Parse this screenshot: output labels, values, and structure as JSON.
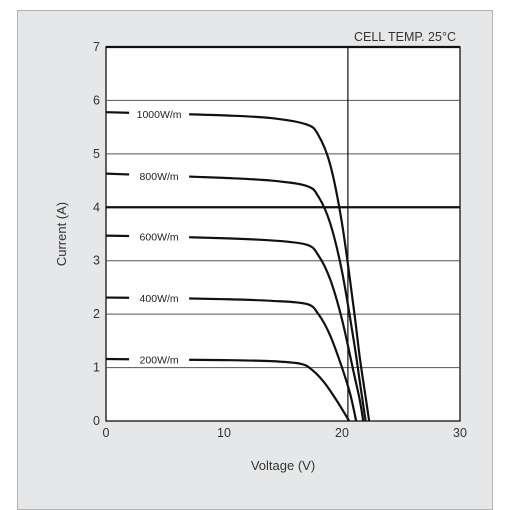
{
  "chart_data": {
    "type": "line",
    "title": "",
    "annotation": "CELL TEMP. 25°C",
    "xlabel": "Voltage (V)",
    "ylabel": "Current  (A)",
    "xlim": [
      0,
      30
    ],
    "ylim": [
      0,
      7
    ],
    "xticks": [
      "0",
      "10",
      "20",
      "30"
    ],
    "yticks": [
      "0",
      "1",
      "2",
      "3",
      "4",
      "5",
      "6",
      "7"
    ],
    "grid": true,
    "legend": "inline labels on curves",
    "series": [
      {
        "name": "1000W/m",
        "x": [
          0,
          5,
          10,
          14,
          17,
          18,
          19,
          20,
          21,
          21.5,
          22,
          22.3
        ],
        "y": [
          5.78,
          5.75,
          5.72,
          5.67,
          5.55,
          5.35,
          4.8,
          3.7,
          2.1,
          1.2,
          0.45,
          0
        ]
      },
      {
        "name": "800W/m",
        "x": [
          0,
          5,
          10,
          14,
          17,
          18,
          19,
          20,
          21,
          21.5,
          22
        ],
        "y": [
          4.63,
          4.59,
          4.55,
          4.5,
          4.4,
          4.2,
          3.7,
          2.8,
          1.5,
          0.75,
          0
        ]
      },
      {
        "name": "600W/m",
        "x": [
          0,
          5,
          10,
          14,
          17,
          18,
          19,
          20,
          21,
          21.5,
          21.8
        ],
        "y": [
          3.47,
          3.45,
          3.42,
          3.38,
          3.3,
          3.1,
          2.65,
          1.9,
          0.9,
          0.4,
          0
        ]
      },
      {
        "name": "400W/m",
        "x": [
          0,
          5,
          10,
          14,
          17,
          18,
          19,
          20,
          20.7,
          21.2
        ],
        "y": [
          2.31,
          2.3,
          2.28,
          2.25,
          2.19,
          2.0,
          1.6,
          1.0,
          0.5,
          0
        ]
      },
      {
        "name": "200W/m",
        "x": [
          0,
          5,
          10,
          14,
          16.5,
          17.5,
          18.5,
          19.5,
          20.2,
          20.6
        ],
        "y": [
          1.16,
          1.15,
          1.14,
          1.12,
          1.07,
          0.95,
          0.72,
          0.4,
          0.15,
          0
        ]
      }
    ],
    "reference_lines": {
      "x": 20.5,
      "y": [
        4,
        7
      ]
    },
    "colors": {
      "line": "#111111",
      "grid": "#555555",
      "panel": "#ffffff",
      "frame_bg": "#e6e7e8"
    }
  }
}
